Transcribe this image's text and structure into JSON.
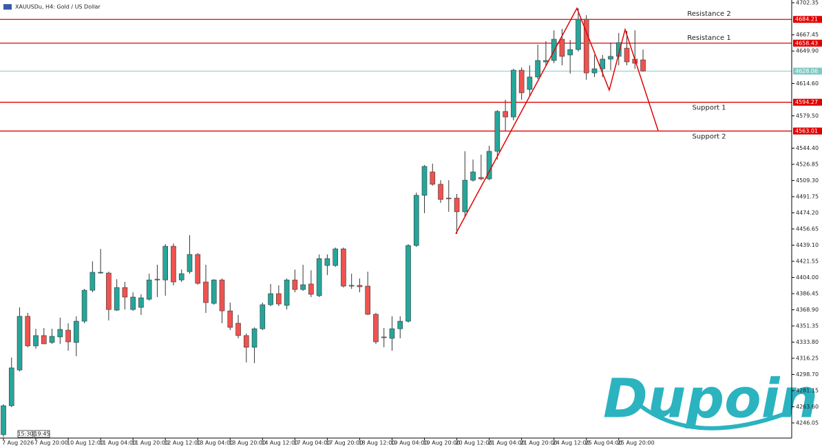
{
  "chart_data": {
    "type": "candlestick",
    "title": "XAUUSDu, H4:  Gold / US Dollar",
    "categories": [
      "7 Aug 2026",
      null,
      null,
      null,
      "7 Aug 20:00",
      null,
      null,
      null,
      "10 Aug 12:00",
      null,
      null,
      null,
      "11 Aug 04:00",
      null,
      null,
      null,
      "11 Aug 20:00",
      null,
      null,
      null,
      "12 Aug 12:00",
      null,
      null,
      null,
      "13 Aug 04:00",
      null,
      null,
      null,
      "13 Aug 20:00",
      null,
      null,
      null,
      "14 Aug 12:00",
      null,
      null,
      null,
      "17 Aug 04:00",
      null,
      null,
      null,
      "17 Aug 20:00",
      null,
      null,
      null,
      "18 Aug 12:00",
      null,
      null,
      null,
      "19 Aug 04:00",
      null,
      null,
      null,
      "19 Aug 20:00",
      null,
      null,
      null,
      "20 Aug 12:00",
      null,
      null,
      null,
      "21 Aug 04:00",
      null,
      null,
      null,
      "21 Aug 20:00",
      null,
      null,
      null,
      "24 Aug 12:00",
      null,
      null,
      null,
      "25 Aug 04:00",
      null,
      null,
      null,
      "25 Aug 20:00",
      null,
      null,
      null
    ],
    "open": [
      4233.3,
      4264.7,
      4303.5,
      4361.8,
      4329.7,
      4340.9,
      4333.4,
      4339.4,
      4346.8,
      4333.4,
      4356.5,
      4390.1,
      4408.8,
      4408.8,
      4368.5,
      4393.1,
      4369.2,
      4371.5,
      4380.4,
      4401.3,
      4401.3,
      4437.9,
      4401.3,
      4410.3,
      4429.0,
      4399.1,
      4375.9,
      4401.3,
      4367.7,
      4354.3,
      4340.9,
      4328.2,
      4348.3,
      4374.4,
      4386.4,
      4373.7,
      4401.3,
      4390.9,
      4396.9,
      4384.2,
      4417.0,
      4417.0,
      4435.0,
      4394.6,
      4395.4,
      4394.6,
      4364.0,
      4339.4,
      4337.9,
      4348.3,
      4356.5,
      4438.7,
      4493.2,
      4518.6,
      4505.2,
      4490.2,
      4490.2,
      4475.3,
      4509.6,
      4512.6,
      4511.1,
      4541.0,
      4584.3,
      4578.3,
      4629.1,
      4608.2,
      4621.7,
      4638.1,
      4639.6,
      4662.7,
      4645.6,
      4651.5,
      4684.4,
      4626.1,
      4630.6,
      4641.1,
      4644.1,
      4653.0,
      4641.1,
      4640.3
    ],
    "high": [
      4266.2,
      4317.0,
      4371.5,
      4365.5,
      4348.3,
      4349.1,
      4348.3,
      4360.3,
      4354.3,
      4361.8,
      4391.6,
      4421.5,
      4435.0,
      4410.3,
      4402.1,
      4399.1,
      4387.9,
      4385.7,
      4408.1,
      4417.8,
      4440.2,
      4440.9,
      4412.6,
      4449.9,
      4430.5,
      4417.8,
      4402.1,
      4402.8,
      4376.7,
      4363.3,
      4343.1,
      4349.8,
      4376.7,
      4396.9,
      4395.4,
      4402.8,
      4412.6,
      4417.8,
      4411.8,
      4429.0,
      4429.0,
      4436.5,
      4436.5,
      4408.1,
      4402.8,
      4410.3,
      4365.5,
      4349.1,
      4361.8,
      4361.8,
      4440.2,
      4496.2,
      4526.1,
      4527.6,
      4509.6,
      4509.6,
      4494.7,
      4541.0,
      4532.0,
      4537.3,
      4547.0,
      4585.8,
      4597.0,
      4630.6,
      4632.1,
      4634.4,
      4656.8,
      4660.5,
      4672.4,
      4673.9,
      4662.0,
      4696.3,
      4688.9,
      4645.6,
      4645.6,
      4659.0,
      4669.5,
      4671.7,
      4672.4,
      4651.5
    ],
    "low": [
      4231.1,
      4263.2,
      4302.0,
      4328.2,
      4326.7,
      4331.9,
      4331.9,
      4331.9,
      4324.4,
      4318.5,
      4354.3,
      4387.9,
      4408.1,
      4357.3,
      4367.7,
      4369.2,
      4367.7,
      4363.3,
      4378.9,
      4382.7,
      4384.2,
      4395.4,
      4399.1,
      4408.1,
      4396.1,
      4365.5,
      4374.4,
      4354.3,
      4346.8,
      4337.9,
      4311.7,
      4311.0,
      4346.8,
      4372.9,
      4372.9,
      4369.2,
      4387.9,
      4389.4,
      4382.7,
      4382.7,
      4406.6,
      4415.5,
      4393.1,
      4391.6,
      4387.9,
      4363.3,
      4331.9,
      4328.2,
      4324.4,
      4337.9,
      4355.1,
      4437.2,
      4473.8,
      4503.7,
      4485.0,
      4475.3,
      4451.4,
      4470.1,
      4508.1,
      4509.6,
      4509.6,
      4532.0,
      4563.4,
      4574.6,
      4597.0,
      4600.8,
      4619.4,
      4634.4,
      4636.6,
      4634.4,
      4625.4,
      4649.3,
      4618.7,
      4621.7,
      4621.7,
      4629.1,
      4634.4,
      4634.4,
      4630.6,
      4627.6
    ],
    "close": [
      4264.7,
      4305.8,
      4361.8,
      4329.7,
      4340.9,
      4331.9,
      4340.1,
      4347.6,
      4334.1,
      4356.5,
      4390.1,
      4409.6,
      4409.6,
      4369.2,
      4393.1,
      4382.7,
      4382.7,
      4381.9,
      4401.3,
      4402.1,
      4437.9,
      4399.1,
      4408.1,
      4429.0,
      4397.6,
      4376.7,
      4401.3,
      4367.7,
      4349.8,
      4340.9,
      4328.2,
      4348.3,
      4374.4,
      4386.4,
      4375.2,
      4401.3,
      4390.9,
      4396.1,
      4385.7,
      4424.5,
      4424.5,
      4435.0,
      4394.6,
      4395.4,
      4393.9,
      4364.0,
      4334.1,
      4338.6,
      4348.3,
      4356.5,
      4438.7,
      4493.2,
      4524.6,
      4505.2,
      4488.7,
      4489.5,
      4475.3,
      4509.6,
      4518.6,
      4511.1,
      4541.0,
      4584.3,
      4578.3,
      4629.1,
      4604.5,
      4621.7,
      4639.6,
      4639.6,
      4662.7,
      4644.1,
      4651.5,
      4684.4,
      4626.1,
      4630.6,
      4641.1,
      4644.1,
      4659.0,
      4638.1,
      4636.6,
      4628.1
    ],
    "up_color": "#26a69a",
    "down_color": "#ef5350",
    "ylim": [
      4229.6,
      4705.3
    ],
    "yticks": [
      4702.35,
      4667.45,
      {
        "value": 4649.9,
        "label": "4649.90"
      },
      {
        "value": 4614.6,
        "label": "4614.60"
      },
      {
        "value": 4579.5,
        "label": "4579.50"
      },
      {
        "value": 4544.4,
        "label": "4544.40"
      },
      4526.85,
      {
        "value": 4509.3,
        "label": "4509.30"
      },
      4491.75,
      {
        "value": 4474.2,
        "label": "4474.20"
      },
      4456.65,
      {
        "value": 4439.1,
        "label": "4439.10"
      },
      4421.55,
      {
        "value": 4404,
        "label": "4404.00"
      },
      4386.45,
      {
        "value": 4368.9,
        "label": "4368.90"
      },
      4351.35,
      {
        "value": 4333.8,
        "label": "4333.80"
      },
      4316.25,
      {
        "value": 4298.7,
        "label": "4298.70"
      },
      4281.15,
      {
        "value": 4263.6,
        "label": "4263.60"
      },
      4246.05
    ],
    "levels": [
      {
        "name": "Resistance 2",
        "value": 4684.21,
        "color": "#e00000"
      },
      {
        "name": "Resistance 1",
        "value": 4658.43,
        "color": "#e00000"
      },
      {
        "name": "Support 1",
        "value": 4594.27,
        "color": "#e00000"
      },
      {
        "name": "Support 2",
        "value": 4563.01,
        "color": "#e00000"
      }
    ],
    "current_price": 4628.06,
    "current_price_color": "#7fcac3",
    "time_markers": [
      "15:30",
      "19:45"
    ],
    "watermark": "Dupoin"
  }
}
